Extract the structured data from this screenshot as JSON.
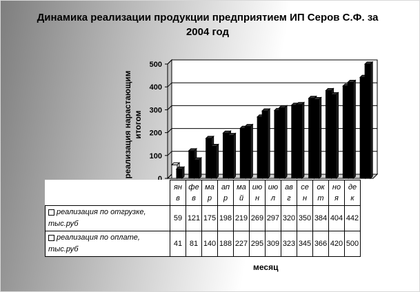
{
  "chart_data": {
    "type": "bar",
    "title": "Динамика реализации продукции предприятием ИП Серов С.Ф. за 2004 год",
    "ylabel": "реализация нарастающим итогом",
    "xlabel": "месяц",
    "ylim": [
      0,
      500
    ],
    "yticks": [
      "0",
      "100",
      "200",
      "300",
      "400",
      "500"
    ],
    "grid": true,
    "categories": [
      "ян в",
      "фе в",
      "ма р",
      "ап р",
      "ма й",
      "ию н",
      "ию л",
      "ав г",
      "се н",
      "ок т",
      "но я",
      "де к"
    ],
    "series": [
      {
        "name": "реализация по отгрузке, тыс.руб",
        "values": [
          59,
          121,
          175,
          198,
          219,
          269,
          297,
          320,
          350,
          384,
          404,
          442
        ],
        "labels": [
          "59",
          "121",
          "175",
          "198",
          "219",
          "269",
          "297",
          "320",
          "350",
          "384",
          "404",
          "442"
        ]
      },
      {
        "name": "реализация по оплате, тыс.руб",
        "values": [
          41,
          81,
          140,
          188,
          227,
          295,
          309,
          323,
          345,
          366,
          420,
          500
        ],
        "labels": [
          "41",
          "81",
          "140",
          "188",
          "227",
          "295",
          "309",
          "323",
          "345",
          "366",
          "420",
          "500"
        ]
      }
    ]
  },
  "colors": {
    "bar_fill": "#000000",
    "first_bar_fill": "#ffffff",
    "plot_bg": "#ffffff",
    "grid": "#000000"
  }
}
